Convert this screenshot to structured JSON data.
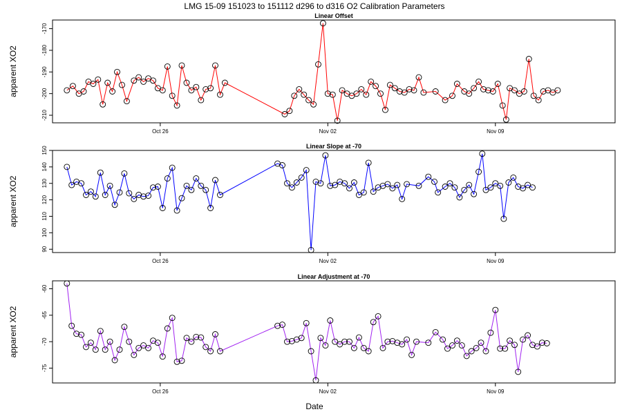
{
  "figure": {
    "title": "LMG   15-09    151023 to 151112    d296 to d316   O2 Calibration Parameters",
    "xlabel": "Date"
  },
  "chart_data": [
    {
      "type": "line",
      "title": "Linear Offset",
      "ylabel": "apparent XO2",
      "color": "#ff0000",
      "xlim": [
        294.5,
        318
      ],
      "ylim": [
        -213.5,
        -166
      ],
      "yticks": [
        -210,
        -200,
        -190,
        -180,
        -170
      ],
      "xticks": [
        {
          "day": 299,
          "label": "Oct 26"
        },
        {
          "day": 306,
          "label": "Nov 02"
        },
        {
          "day": 313,
          "label": "Nov 09"
        }
      ],
      "points": [
        [
          295.1,
          -198.5
        ],
        [
          295.35,
          -196.5
        ],
        [
          295.6,
          -200
        ],
        [
          295.8,
          -199
        ],
        [
          296.0,
          -194.5
        ],
        [
          296.2,
          -195.5
        ],
        [
          296.4,
          -193.5
        ],
        [
          296.6,
          -205
        ],
        [
          296.8,
          -195
        ],
        [
          297.0,
          -199
        ],
        [
          297.2,
          -190
        ],
        [
          297.4,
          -196
        ],
        [
          297.6,
          -203.5
        ],
        [
          297.9,
          -194
        ],
        [
          298.1,
          -192.5
        ],
        [
          298.3,
          -194.5
        ],
        [
          298.5,
          -193
        ],
        [
          298.7,
          -194
        ],
        [
          298.9,
          -197.5
        ],
        [
          299.1,
          -198.5
        ],
        [
          299.3,
          -187.5
        ],
        [
          299.5,
          -201
        ],
        [
          299.7,
          -205.5
        ],
        [
          299.9,
          -187
        ],
        [
          300.1,
          -195
        ],
        [
          300.3,
          -198.5
        ],
        [
          300.5,
          -197
        ],
        [
          300.7,
          -203
        ],
        [
          300.9,
          -198
        ],
        [
          301.1,
          -197.5
        ],
        [
          301.3,
          -187
        ],
        [
          301.5,
          -200.5
        ],
        [
          301.7,
          -195
        ],
        [
          304.2,
          -209.5
        ],
        [
          304.4,
          -208
        ],
        [
          304.6,
          -201
        ],
        [
          304.8,
          -198
        ],
        [
          305.0,
          -200.5
        ],
        [
          305.2,
          -203
        ],
        [
          305.4,
          -205
        ],
        [
          305.6,
          -186.5
        ],
        [
          305.8,
          -167.5
        ],
        [
          306.0,
          -200
        ],
        [
          306.2,
          -200.5
        ],
        [
          306.4,
          -212.5
        ],
        [
          306.6,
          -198.5
        ],
        [
          306.8,
          -200
        ],
        [
          307.0,
          -201
        ],
        [
          307.2,
          -200
        ],
        [
          307.4,
          -198
        ],
        [
          307.6,
          -200.5
        ],
        [
          307.8,
          -194.5
        ],
        [
          308.0,
          -196.5
        ],
        [
          308.2,
          -200
        ],
        [
          308.4,
          -207.5
        ],
        [
          308.6,
          -196
        ],
        [
          308.8,
          -197.5
        ],
        [
          309.0,
          -199
        ],
        [
          309.2,
          -199.5
        ],
        [
          309.4,
          -198
        ],
        [
          309.6,
          -198.5
        ],
        [
          309.8,
          -192.5
        ],
        [
          310.0,
          -199.5
        ],
        [
          310.5,
          -199
        ],
        [
          310.9,
          -203
        ],
        [
          311.2,
          -201
        ],
        [
          311.4,
          -195.5
        ],
        [
          311.7,
          -199
        ],
        [
          311.9,
          -200
        ],
        [
          312.1,
          -197.5
        ],
        [
          312.3,
          -194.5
        ],
        [
          312.5,
          -198
        ],
        [
          312.7,
          -198.5
        ],
        [
          312.9,
          -199
        ],
        [
          313.1,
          -195.5
        ],
        [
          313.3,
          -205.5
        ],
        [
          313.45,
          -212
        ],
        [
          313.6,
          -197.5
        ],
        [
          313.8,
          -198.5
        ],
        [
          314.0,
          -200
        ],
        [
          314.2,
          -199
        ],
        [
          314.4,
          -184
        ],
        [
          314.6,
          -201
        ],
        [
          314.8,
          -203
        ],
        [
          315.0,
          -199
        ],
        [
          315.2,
          -198.5
        ],
        [
          315.4,
          -199.5
        ],
        [
          315.6,
          -198.5
        ]
      ]
    },
    {
      "type": "line",
      "title": "Linear Slope at -70",
      "ylabel": "apparent XO2",
      "color": "#0000ff",
      "xlim": [
        294.5,
        318
      ],
      "ylim": [
        88,
        150
      ],
      "yticks": [
        90,
        100,
        110,
        120,
        130,
        140,
        150
      ],
      "xticks": [
        {
          "day": 299,
          "label": "Oct 26"
        },
        {
          "day": 306,
          "label": "Nov 02"
        },
        {
          "day": 313,
          "label": "Nov 09"
        }
      ],
      "points": [
        [
          295.1,
          140
        ],
        [
          295.3,
          129
        ],
        [
          295.5,
          131
        ],
        [
          295.7,
          130
        ],
        [
          295.9,
          123
        ],
        [
          296.1,
          125
        ],
        [
          296.3,
          122
        ],
        [
          296.5,
          136.5
        ],
        [
          296.7,
          123
        ],
        [
          296.9,
          128.5
        ],
        [
          297.1,
          117
        ],
        [
          297.3,
          124.5
        ],
        [
          297.5,
          136
        ],
        [
          297.7,
          124
        ],
        [
          297.9,
          120.5
        ],
        [
          298.1,
          123
        ],
        [
          298.3,
          122
        ],
        [
          298.5,
          122.5
        ],
        [
          298.7,
          127.5
        ],
        [
          298.9,
          128
        ],
        [
          299.1,
          115
        ],
        [
          299.3,
          133
        ],
        [
          299.5,
          139.5
        ],
        [
          299.7,
          113.5
        ],
        [
          299.9,
          121
        ],
        [
          300.1,
          128.5
        ],
        [
          300.3,
          126
        ],
        [
          300.5,
          133
        ],
        [
          300.7,
          128.5
        ],
        [
          300.9,
          126
        ],
        [
          301.1,
          115
        ],
        [
          301.3,
          132
        ],
        [
          301.5,
          123
        ],
        [
          303.9,
          142
        ],
        [
          304.1,
          141
        ],
        [
          304.3,
          130
        ],
        [
          304.5,
          127.5
        ],
        [
          304.7,
          130.5
        ],
        [
          304.9,
          133.5
        ],
        [
          305.1,
          138
        ],
        [
          305.3,
          89.5
        ],
        [
          305.5,
          131
        ],
        [
          305.7,
          130
        ],
        [
          305.9,
          147
        ],
        [
          306.1,
          128.5
        ],
        [
          306.3,
          129
        ],
        [
          306.5,
          131
        ],
        [
          306.7,
          130
        ],
        [
          306.9,
          127
        ],
        [
          307.1,
          130.5
        ],
        [
          307.3,
          123
        ],
        [
          307.5,
          124.5
        ],
        [
          307.7,
          142.5
        ],
        [
          307.9,
          125
        ],
        [
          308.1,
          127.5
        ],
        [
          308.3,
          128.5
        ],
        [
          308.5,
          129.5
        ],
        [
          308.7,
          127
        ],
        [
          308.9,
          129
        ],
        [
          309.1,
          120.5
        ],
        [
          309.3,
          129.5
        ],
        [
          309.8,
          128.5
        ],
        [
          310.2,
          134
        ],
        [
          310.45,
          131
        ],
        [
          310.6,
          124.5
        ],
        [
          310.9,
          128
        ],
        [
          311.1,
          130
        ],
        [
          311.3,
          127.5
        ],
        [
          311.5,
          121.5
        ],
        [
          311.7,
          126
        ],
        [
          311.9,
          129
        ],
        [
          312.1,
          123.5
        ],
        [
          312.3,
          137
        ],
        [
          312.45,
          148
        ],
        [
          312.6,
          126
        ],
        [
          312.8,
          127.5
        ],
        [
          313.0,
          130
        ],
        [
          313.2,
          128.5
        ],
        [
          313.35,
          108.5
        ],
        [
          313.55,
          130.5
        ],
        [
          313.75,
          133.5
        ],
        [
          313.95,
          128
        ],
        [
          314.15,
          127
        ],
        [
          314.35,
          129
        ],
        [
          314.55,
          127.5
        ]
      ]
    },
    {
      "type": "line",
      "title": "Linear Adjustment at -70",
      "ylabel": "apparent XO2",
      "color": "#a020f0",
      "xlim": [
        294.5,
        318
      ],
      "ylim": [
        -77.8,
        -58.5
      ],
      "yticks": [
        -75,
        -70,
        -65,
        -60
      ],
      "xticks": [
        {
          "day": 299,
          "label": "Oct 26"
        },
        {
          "day": 306,
          "label": "Nov 02"
        },
        {
          "day": 313,
          "label": "Nov 09"
        }
      ],
      "points": [
        [
          295.1,
          -59
        ],
        [
          295.3,
          -67
        ],
        [
          295.5,
          -68.5
        ],
        [
          295.7,
          -68.7
        ],
        [
          295.9,
          -71
        ],
        [
          296.1,
          -70.2
        ],
        [
          296.3,
          -71.5
        ],
        [
          296.5,
          -68
        ],
        [
          296.7,
          -71.5
        ],
        [
          296.9,
          -70
        ],
        [
          297.1,
          -73.5
        ],
        [
          297.3,
          -71.5
        ],
        [
          297.5,
          -67.2
        ],
        [
          297.7,
          -70
        ],
        [
          297.9,
          -72.5
        ],
        [
          298.1,
          -71.2
        ],
        [
          298.3,
          -70.7
        ],
        [
          298.5,
          -71.2
        ],
        [
          298.7,
          -69.8
        ],
        [
          298.9,
          -70.2
        ],
        [
          299.1,
          -72.8
        ],
        [
          299.3,
          -67.5
        ],
        [
          299.5,
          -65.5
        ],
        [
          299.7,
          -73.8
        ],
        [
          299.9,
          -73.6
        ],
        [
          300.1,
          -69.3
        ],
        [
          300.3,
          -70
        ],
        [
          300.5,
          -69.1
        ],
        [
          300.7,
          -69.2
        ],
        [
          300.9,
          -71
        ],
        [
          301.1,
          -71.8
        ],
        [
          301.3,
          -68.6
        ],
        [
          301.5,
          -71.8
        ],
        [
          303.9,
          -67
        ],
        [
          304.1,
          -66.8
        ],
        [
          304.3,
          -70
        ],
        [
          304.5,
          -69.9
        ],
        [
          304.7,
          -69.6
        ],
        [
          304.9,
          -69.3
        ],
        [
          305.1,
          -66.5
        ],
        [
          305.3,
          -71.8
        ],
        [
          305.5,
          -77.3
        ],
        [
          305.7,
          -69.3
        ],
        [
          305.9,
          -70.7
        ],
        [
          306.1,
          -66
        ],
        [
          306.3,
          -70
        ],
        [
          306.5,
          -70.5
        ],
        [
          306.7,
          -70
        ],
        [
          306.9,
          -70
        ],
        [
          307.1,
          -71.2
        ],
        [
          307.3,
          -69.2
        ],
        [
          307.5,
          -71.2
        ],
        [
          307.7,
          -71.8
        ],
        [
          307.9,
          -66.3
        ],
        [
          308.1,
          -65.2
        ],
        [
          308.3,
          -71.2
        ],
        [
          308.5,
          -70
        ],
        [
          308.7,
          -69.9
        ],
        [
          308.9,
          -70.2
        ],
        [
          309.1,
          -70.5
        ],
        [
          309.3,
          -69.6
        ],
        [
          309.5,
          -72.5
        ],
        [
          309.7,
          -70
        ],
        [
          310.2,
          -70.2
        ],
        [
          310.5,
          -68.2
        ],
        [
          310.8,
          -69.6
        ],
        [
          311.0,
          -71.3
        ],
        [
          311.2,
          -70.7
        ],
        [
          311.4,
          -69.8
        ],
        [
          311.6,
          -70.7
        ],
        [
          311.8,
          -72.7
        ],
        [
          312.0,
          -71.8
        ],
        [
          312.2,
          -71.2
        ],
        [
          312.4,
          -70.2
        ],
        [
          312.6,
          -71.8
        ],
        [
          312.8,
          -68.3
        ],
        [
          313.0,
          -64
        ],
        [
          313.2,
          -71.3
        ],
        [
          313.4,
          -71.3
        ],
        [
          313.6,
          -69.8
        ],
        [
          313.8,
          -70.6
        ],
        [
          313.95,
          -75.7
        ],
        [
          314.15,
          -69.6
        ],
        [
          314.35,
          -68.8
        ],
        [
          314.55,
          -70.6
        ],
        [
          314.75,
          -70.9
        ],
        [
          314.95,
          -70.2
        ],
        [
          315.15,
          -70.3
        ]
      ]
    }
  ]
}
